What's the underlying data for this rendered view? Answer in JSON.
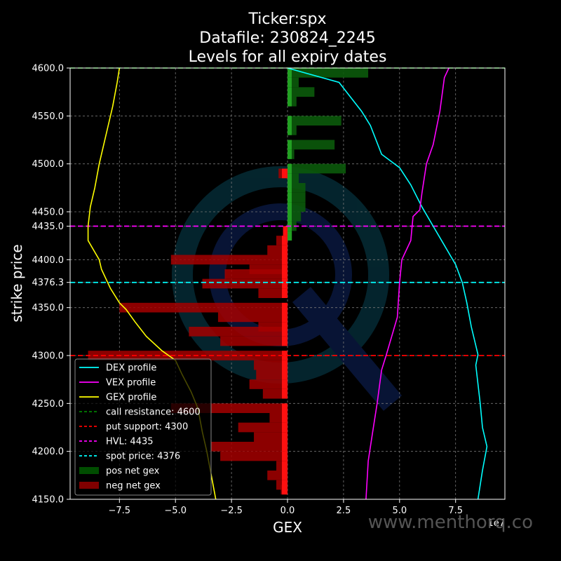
{
  "chart_data": {
    "type": "bar",
    "title_lines": [
      "Ticker:spx",
      "Datafile: 230824_2245",
      "Levels for all expiry dates"
    ],
    "xlabel": "GEX",
    "ylabel": "strike price",
    "x_offset_label": "1e7",
    "watermark": "www.menthorq.co",
    "xlim": [
      -9.7,
      9.7
    ],
    "ylim": [
      4150,
      4600
    ],
    "x_unit_multiplier": 10000000,
    "grid": true,
    "legend_position": "lower-left",
    "x_ticks": [
      {
        "v": -7.5,
        "label": "−7.5"
      },
      {
        "v": -5.0,
        "label": "−5.0"
      },
      {
        "v": -2.5,
        "label": "−2.5"
      },
      {
        "v": 0.0,
        "label": "0.0"
      },
      {
        "v": 2.5,
        "label": "2.5"
      },
      {
        "v": 5.0,
        "label": "5.0"
      },
      {
        "v": 7.5,
        "label": "7.5"
      }
    ],
    "y_ticks": [
      {
        "v": 4150,
        "label": "4150.0"
      },
      {
        "v": 4200,
        "label": "4200.0"
      },
      {
        "v": 4250,
        "label": "4250.0"
      },
      {
        "v": 4300,
        "label": "4300.0"
      },
      {
        "v": 4350,
        "label": "4350.0"
      },
      {
        "v": 4376.3,
        "label": "4376.3"
      },
      {
        "v": 4400,
        "label": "4400.0"
      },
      {
        "v": 4435,
        "label": "4435.0"
      },
      {
        "v": 4450,
        "label": "4450.0"
      },
      {
        "v": 4500,
        "label": "4500.0"
      },
      {
        "v": 4550,
        "label": "4550.0"
      },
      {
        "v": 4600,
        "label": "4600.0"
      }
    ],
    "levels": [
      {
        "name": "call resistance: 4600",
        "value": 4600,
        "color": "#008000"
      },
      {
        "name": "put support: 4300",
        "value": 4300,
        "color": "#ff0000"
      },
      {
        "name": "HVL: 4435",
        "value": 4435,
        "color": "#ff00ff"
      },
      {
        "name": "spot price: 4376",
        "value": 4376.3,
        "color": "#00ffff"
      }
    ],
    "profiles": [
      {
        "name": "DEX profile",
        "color": "#00ffff",
        "points": [
          [
            0,
            4600
          ],
          [
            2.3,
            4585
          ],
          [
            3.3,
            4555
          ],
          [
            3.7,
            4540
          ],
          [
            4.2,
            4510
          ],
          [
            5.0,
            4496
          ],
          [
            5.5,
            4478
          ],
          [
            6.0,
            4455
          ],
          [
            6.5,
            4435
          ],
          [
            7.0,
            4415
          ],
          [
            7.5,
            4395
          ],
          [
            7.8,
            4376
          ],
          [
            8.0,
            4355
          ],
          [
            8.2,
            4330
          ],
          [
            8.5,
            4301
          ],
          [
            8.4,
            4290
          ],
          [
            8.6,
            4250
          ],
          [
            8.7,
            4225
          ],
          [
            8.9,
            4205
          ],
          [
            8.7,
            4180
          ],
          [
            8.5,
            4150
          ]
        ]
      },
      {
        "name": "VEX profile",
        "color": "#ff00ff",
        "points": [
          [
            7.2,
            4600
          ],
          [
            7.0,
            4590
          ],
          [
            6.8,
            4555
          ],
          [
            6.5,
            4520
          ],
          [
            6.2,
            4500
          ],
          [
            6.0,
            4470
          ],
          [
            5.9,
            4452
          ],
          [
            5.6,
            4445
          ],
          [
            5.5,
            4420
          ],
          [
            5.1,
            4400
          ],
          [
            5.0,
            4376
          ],
          [
            4.9,
            4340
          ],
          [
            4.4,
            4300
          ],
          [
            4.2,
            4285
          ],
          [
            4.0,
            4250
          ],
          [
            3.8,
            4220
          ],
          [
            3.6,
            4190
          ],
          [
            3.5,
            4150
          ]
        ]
      },
      {
        "name": "GEX profile",
        "color": "#ffff00",
        "points": [
          [
            -7.5,
            4600
          ],
          [
            -7.6,
            4585
          ],
          [
            -7.8,
            4560
          ],
          [
            -8.0,
            4540
          ],
          [
            -8.2,
            4520
          ],
          [
            -8.4,
            4500
          ],
          [
            -8.6,
            4475
          ],
          [
            -8.8,
            4455
          ],
          [
            -8.9,
            4435
          ],
          [
            -8.9,
            4420
          ],
          [
            -8.4,
            4400
          ],
          [
            -8.3,
            4390
          ],
          [
            -7.9,
            4370
          ],
          [
            -7.5,
            4355
          ],
          [
            -7.2,
            4348
          ],
          [
            -6.8,
            4335
          ],
          [
            -6.3,
            4320
          ],
          [
            -5.6,
            4305
          ],
          [
            -5.0,
            4295
          ],
          [
            -4.7,
            4280
          ],
          [
            -4.3,
            4262
          ],
          [
            -4.0,
            4245
          ],
          [
            -3.8,
            4220
          ],
          [
            -3.6,
            4200
          ],
          [
            -3.4,
            4175
          ],
          [
            -3.2,
            4150
          ]
        ]
      }
    ],
    "pos_gex": [
      {
        "strike": 4595,
        "value": 3.6
      },
      {
        "strike": 4585,
        "value": 0.5
      },
      {
        "strike": 4575,
        "value": 1.2
      },
      {
        "strike": 4565,
        "value": 0.4
      },
      {
        "strike": 4545,
        "value": 2.4
      },
      {
        "strike": 4535,
        "value": 0.4
      },
      {
        "strike": 4520,
        "value": 2.1
      },
      {
        "strike": 4510,
        "value": 0.3
      },
      {
        "strike": 4495,
        "value": 2.6
      },
      {
        "strike": 4485,
        "value": 0.5
      },
      {
        "strike": 4475,
        "value": 0.8
      },
      {
        "strike": 4465,
        "value": 0.8
      },
      {
        "strike": 4455,
        "value": 0.8
      },
      {
        "strike": 4445,
        "value": 0.6
      },
      {
        "strike": 4435,
        "value": 0.4
      },
      {
        "strike": 4425,
        "value": 0.2
      }
    ],
    "neg_gex": [
      {
        "strike": 4490,
        "value": -0.4
      },
      {
        "strike": 4430,
        "value": -0.2
      },
      {
        "strike": 4420,
        "value": -0.5
      },
      {
        "strike": 4410,
        "value": -0.9
      },
      {
        "strike": 4400,
        "value": -5.2
      },
      {
        "strike": 4390,
        "value": -1.7
      },
      {
        "strike": 4385,
        "value": -2.8
      },
      {
        "strike": 4375,
        "value": -3.8
      },
      {
        "strike": 4365,
        "value": -1.3
      },
      {
        "strike": 4350,
        "value": -7.5
      },
      {
        "strike": 4340,
        "value": -3.1
      },
      {
        "strike": 4330,
        "value": -1.3
      },
      {
        "strike": 4325,
        "value": -4.4
      },
      {
        "strike": 4315,
        "value": -3.0
      },
      {
        "strike": 4300,
        "value": -8.9
      },
      {
        "strike": 4290,
        "value": -1.5
      },
      {
        "strike": 4280,
        "value": -1.4
      },
      {
        "strike": 4270,
        "value": -1.7
      },
      {
        "strike": 4260,
        "value": -1.1
      },
      {
        "strike": 4245,
        "value": -5.2
      },
      {
        "strike": 4235,
        "value": -0.8
      },
      {
        "strike": 4225,
        "value": -2.2
      },
      {
        "strike": 4215,
        "value": -1.5
      },
      {
        "strike": 4205,
        "value": -3.4
      },
      {
        "strike": 4195,
        "value": -3.0
      },
      {
        "strike": 4185,
        "value": -0.5
      },
      {
        "strike": 4175,
        "value": -0.9
      },
      {
        "strike": 4165,
        "value": -0.5
      },
      {
        "strike": 4160,
        "value": -0.3
      }
    ],
    "legend": [
      {
        "label": "DEX profile",
        "kind": "line",
        "color": "#00ffff"
      },
      {
        "label": "VEX profile",
        "kind": "line",
        "color": "#ff00ff"
      },
      {
        "label": "GEX profile",
        "kind": "line",
        "color": "#ffff00"
      },
      {
        "label": "call resistance: 4600",
        "kind": "dash",
        "color": "#008000"
      },
      {
        "label": "put support: 4300",
        "kind": "dash",
        "color": "#ff0000"
      },
      {
        "label": "HVL: 4435",
        "kind": "dash",
        "color": "#ff00ff"
      },
      {
        "label": "spot price: 4376",
        "kind": "dash",
        "color": "#00ffff"
      },
      {
        "label": "pos net gex",
        "kind": "patch",
        "color": "#004d00"
      },
      {
        "label": "neg net gex",
        "kind": "patch",
        "color": "#800000"
      }
    ]
  }
}
